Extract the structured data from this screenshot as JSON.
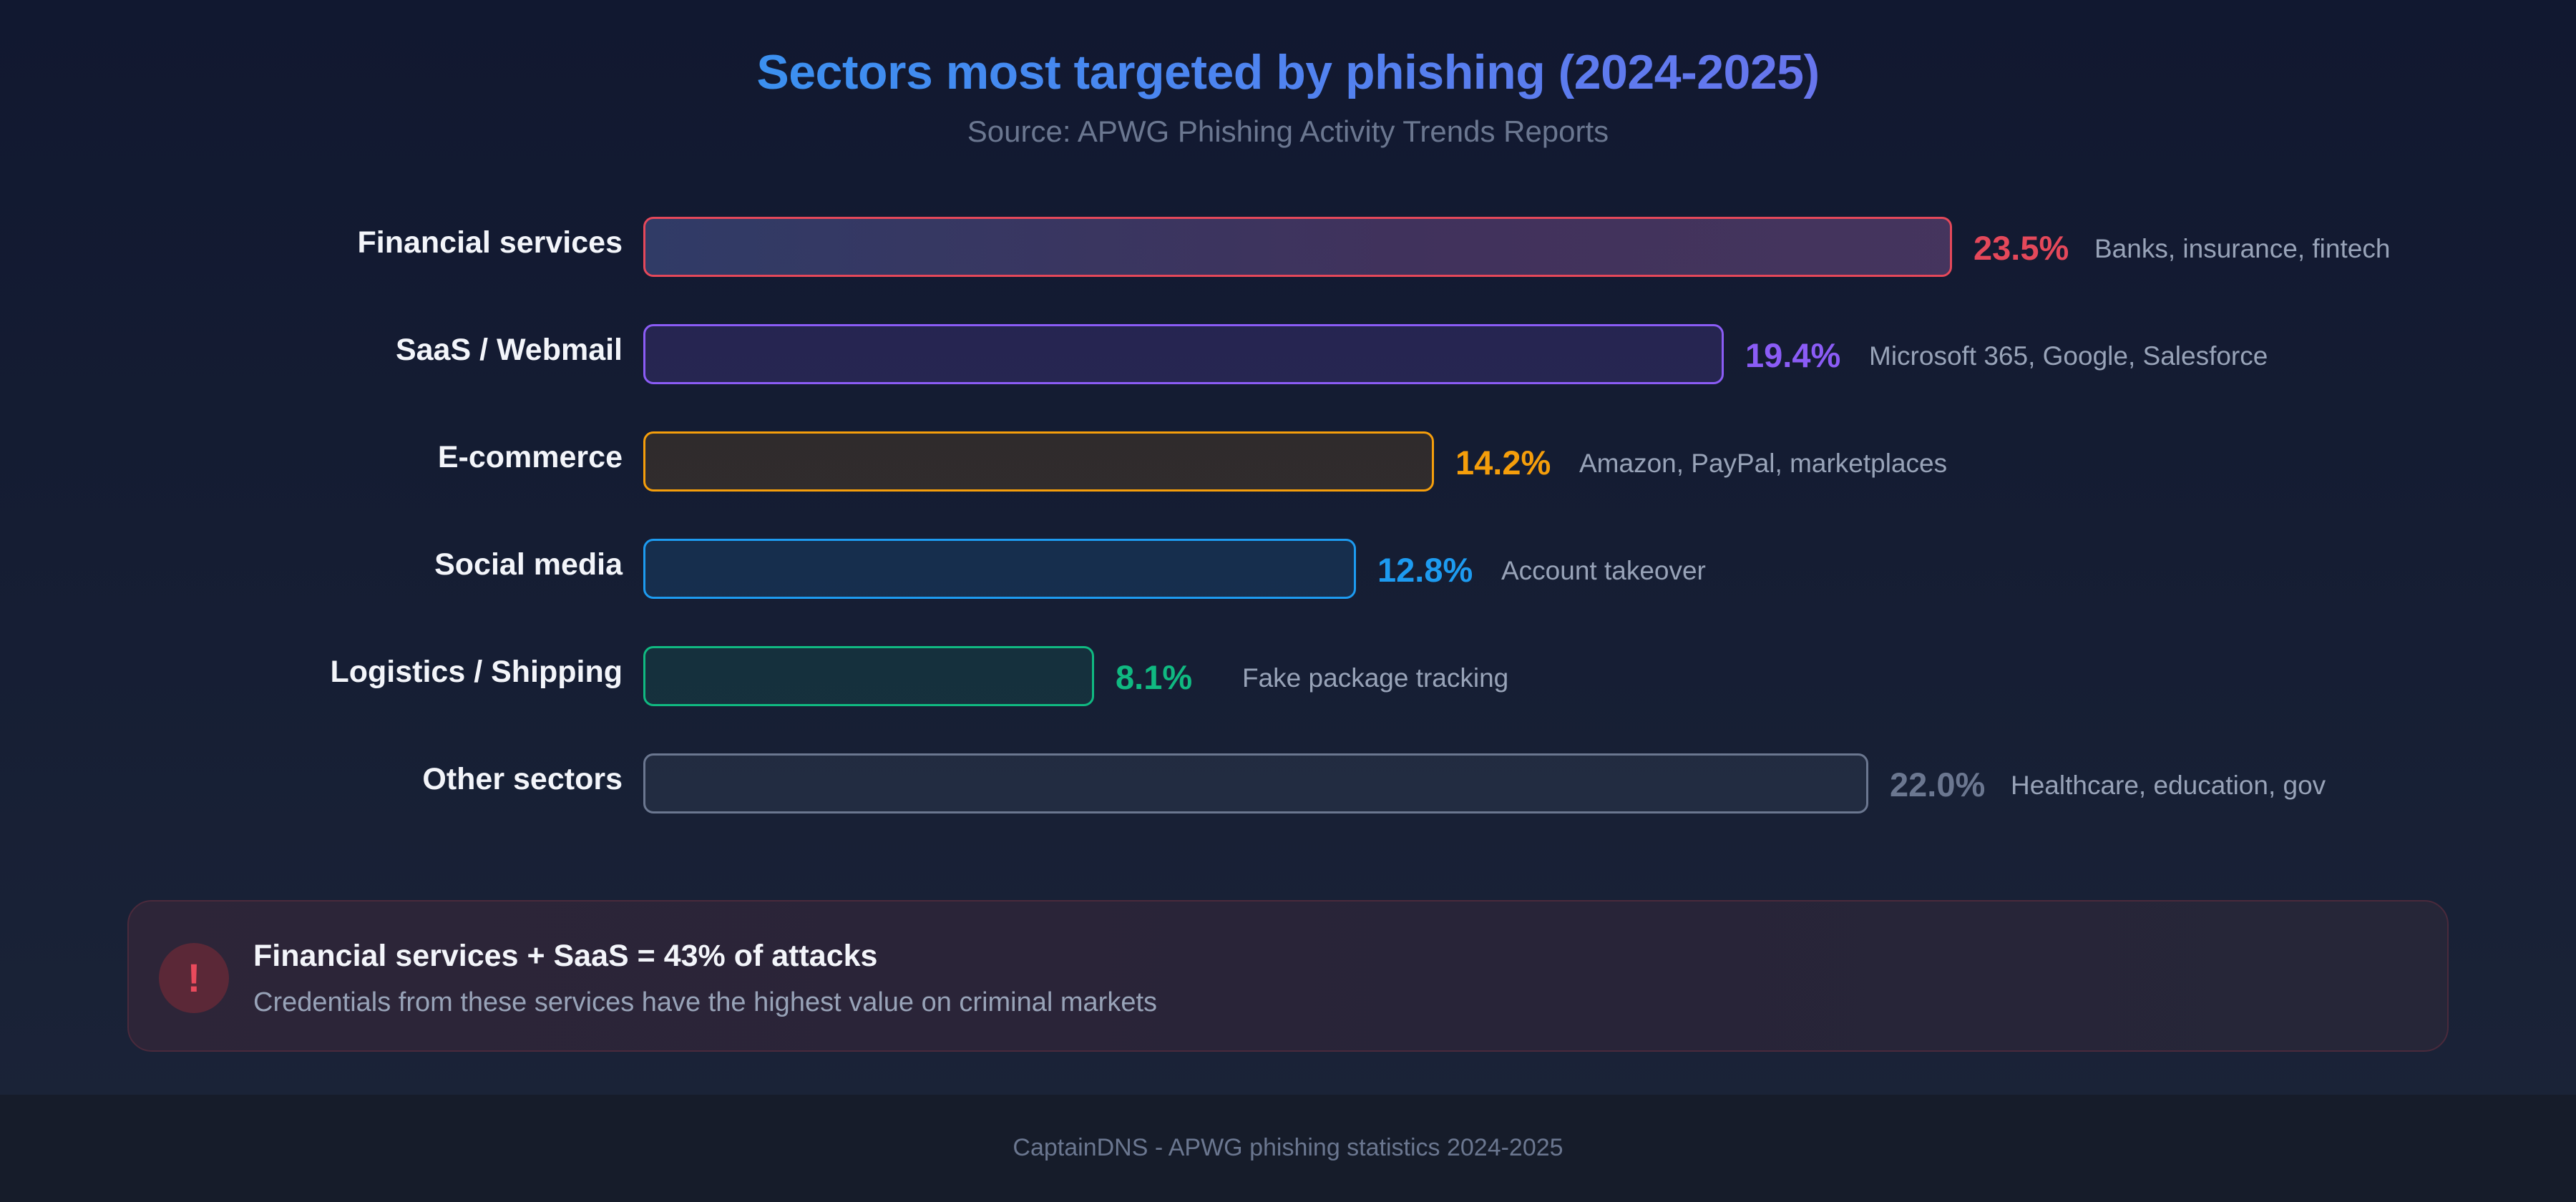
{
  "title": "Sectors most targeted by phishing (2024-2025)",
  "subtitle": "Source: APWG Phishing Activity Trends Reports",
  "chart_data": {
    "type": "bar",
    "orientation": "horizontal",
    "title": "Sectors most targeted by phishing (2024-2025)",
    "subtitle": "Source: APWG Phishing Activity Trends Reports",
    "xlabel": "",
    "ylabel": "",
    "grid": false,
    "categories": [
      "Financial services",
      "SaaS / Webmail",
      "E-commerce",
      "Social media",
      "Logistics / Shipping",
      "Other sectors"
    ],
    "values": [
      23.5,
      19.4,
      14.2,
      12.8,
      8.1,
      22.0
    ],
    "value_labels": [
      "23.5%",
      "19.4%",
      "14.2%",
      "12.8%",
      "8.1%",
      "22.0%"
    ],
    "notes": [
      "Banks, insurance, fintech",
      "Microsoft 365, Google, Salesforce",
      "Amazon, PayPal, marketplaces",
      "Account takeover",
      "Fake package tracking",
      "Healthcare, education, gov"
    ],
    "colors": [
      "#e5485a",
      "#8b5cf6",
      "#f59e0b",
      "#1d9bf0",
      "#10b981",
      "#6b7790"
    ]
  },
  "callout": {
    "icon": "alert-icon",
    "icon_glyph": "!",
    "title": "Financial services + SaaS = 43% of attacks",
    "body": "Credentials from these services have the highest value on criminal markets"
  },
  "footer": "CaptainDNS - APWG phishing statistics 2024-2025"
}
